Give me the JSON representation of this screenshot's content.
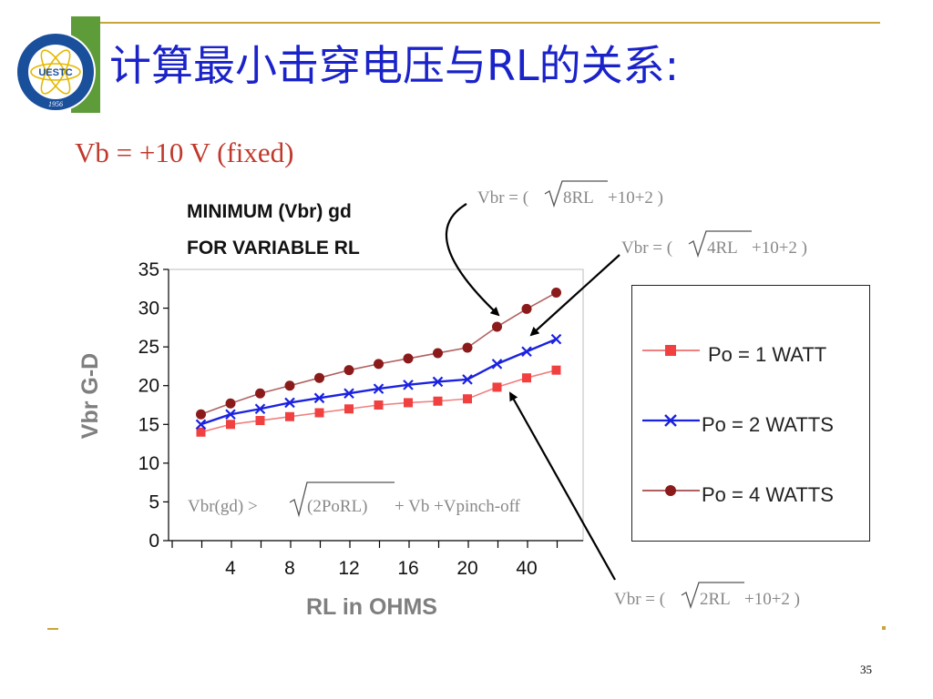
{
  "slide": {
    "title": "计算最小击穿电压与RL的关系:",
    "logo_text": "UESTC",
    "logo_year": "1956",
    "vb_fixed": "Vb = +10 V (fixed)",
    "page_number": "35"
  },
  "annotations": {
    "formula_8rl": {
      "prefix": "Vbr = (",
      "radicand": "8RL",
      "suffix": " +10+2 )"
    },
    "formula_4rl": {
      "prefix": "Vbr = (",
      "radicand": "4RL",
      "suffix": " +10+2 )"
    },
    "formula_2rl": {
      "prefix": "Vbr = (",
      "radicand": "2RL",
      "suffix": " +10+2 )"
    },
    "formula_gd": {
      "prefix": "Vbr(gd) > ",
      "radicand": "(2PoRL)",
      "suffix": " + Vb +Vpinch-off"
    }
  },
  "colors": {
    "title": "#1a22c9",
    "vb_fixed": "#c0392b",
    "po1": "#f04040",
    "po2": "#1a22e0",
    "po4": "#8b1a1a",
    "axis_label": "#7f7f7f",
    "accent_green": "#5e9c3a",
    "accent_gold": "#c8a53a"
  },
  "chart_data": {
    "type": "line",
    "title_lines": [
      "MINIMUM (Vbr) gd",
      "FOR VARIABLE RL"
    ],
    "xlabel": "RL in OHMS",
    "ylabel": "Vbr G-D",
    "ylim": [
      0,
      35
    ],
    "yticks": [
      0,
      5,
      10,
      15,
      20,
      25,
      30,
      35
    ],
    "x_tick_labels": [
      "4",
      "8",
      "12",
      "16",
      "20",
      "40"
    ],
    "x": [
      2,
      4,
      6,
      8,
      10,
      12,
      14,
      16,
      18,
      20,
      30,
      40,
      50
    ],
    "legend_position": "right",
    "series": [
      {
        "name": "Po = 1 WATT",
        "marker": "square",
        "color": "#f04040",
        "line_color": "#f08080",
        "values": [
          14,
          15,
          15.5,
          16,
          16.5,
          17,
          17.5,
          17.8,
          18,
          18.3,
          19.8,
          21,
          22
        ]
      },
      {
        "name": "Po = 2 WATTS",
        "marker": "x",
        "color": "#1a22e0",
        "line_color": "#1a22e0",
        "values": [
          15,
          16.3,
          17,
          17.8,
          18.4,
          19,
          19.6,
          20.1,
          20.5,
          20.8,
          22.8,
          24.4,
          26
        ]
      },
      {
        "name": "Po = 4 WATTS",
        "marker": "circle",
        "color": "#8b1a1a",
        "line_color": "#b06060",
        "values": [
          16.3,
          17.7,
          19,
          20,
          21,
          22,
          22.8,
          23.5,
          24.2,
          24.9,
          27.6,
          29.9,
          32
        ]
      }
    ]
  }
}
